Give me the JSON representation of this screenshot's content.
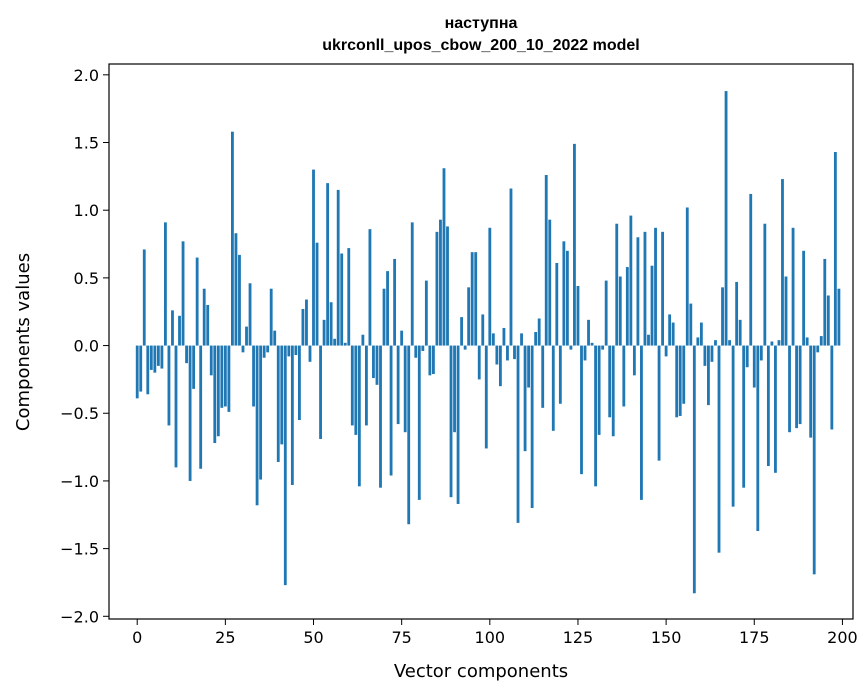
{
  "chart_data": {
    "type": "bar",
    "title_line1": "наступна",
    "title_line2": "ukrconll_upos_cbow_200_10_2022 model",
    "xlabel": "Vector components",
    "ylabel": "Components values",
    "xlim": [
      -8,
      203
    ],
    "ylim": [
      -2.02,
      2.08
    ],
    "xticks": [
      0,
      25,
      50,
      75,
      100,
      125,
      150,
      175,
      200
    ],
    "xtick_labels": [
      "0",
      "25",
      "50",
      "75",
      "100",
      "125",
      "150",
      "175",
      "200"
    ],
    "yticks": [
      2.0,
      1.5,
      1.0,
      0.5,
      0.0,
      -0.5,
      -1.0,
      -1.5,
      -2.0
    ],
    "ytick_labels": [
      "2.0",
      "1.5",
      "1.0",
      "0.5",
      "0.0",
      "−0.5",
      "−1.0",
      "−1.5",
      "−2.0"
    ],
    "bar_color": "#1f77b4",
    "grid": false,
    "values": [
      -0.39,
      -0.34,
      0.71,
      -0.36,
      -0.18,
      -0.2,
      -0.15,
      -0.17,
      0.91,
      -0.59,
      0.26,
      -0.9,
      0.22,
      0.77,
      -0.13,
      -1.0,
      -0.32,
      0.65,
      -0.91,
      0.42,
      0.3,
      -0.22,
      -0.72,
      -0.67,
      -0.46,
      -0.45,
      -0.49,
      1.58,
      0.83,
      0.67,
      -0.05,
      0.14,
      0.46,
      -0.45,
      -1.18,
      -0.99,
      -0.09,
      -0.05,
      0.42,
      0.11,
      -0.86,
      -0.73,
      -1.77,
      -0.08,
      -1.03,
      -0.07,
      -0.55,
      0.27,
      0.34,
      -0.12,
      1.3,
      0.76,
      -0.69,
      0.19,
      1.2,
      0.32,
      0.05,
      1.15,
      0.68,
      0.02,
      0.72,
      -0.59,
      -0.66,
      -1.04,
      0.08,
      -0.59,
      0.86,
      -0.24,
      -0.29,
      -1.05,
      0.42,
      0.55,
      -0.96,
      0.64,
      -0.58,
      0.11,
      -0.64,
      -1.32,
      0.91,
      -0.09,
      -1.14,
      -0.04,
      0.48,
      -0.22,
      -0.21,
      0.84,
      0.93,
      1.31,
      0.88,
      -1.12,
      -0.64,
      -1.17,
      0.21,
      -0.03,
      0.43,
      0.69,
      0.69,
      -0.25,
      0.23,
      -0.76,
      0.87,
      0.09,
      -0.14,
      -0.3,
      0.13,
      -0.11,
      1.16,
      -0.1,
      -1.31,
      0.09,
      -0.78,
      -0.31,
      -1.2,
      0.1,
      0.2,
      -0.46,
      1.26,
      0.93,
      -0.63,
      0.61,
      -0.43,
      0.77,
      0.7,
      -0.03,
      1.49,
      0.44,
      -0.95,
      -0.11,
      0.19,
      0.02,
      -1.04,
      -0.66,
      -0.03,
      0.48,
      -0.53,
      -0.67,
      0.9,
      0.51,
      -0.45,
      0.58,
      0.96,
      -0.22,
      0.8,
      -1.14,
      0.84,
      0.08,
      0.59,
      0.87,
      -0.85,
      0.84,
      -0.08,
      0.23,
      0.17,
      -0.53,
      -0.52,
      -0.43,
      1.02,
      0.31,
      -1.83,
      0.06,
      0.17,
      -0.15,
      -0.44,
      -0.12,
      0.04,
      -1.53,
      0.43,
      1.88,
      0.04,
      -1.19,
      0.47,
      0.19,
      -1.05,
      -0.16,
      1.12,
      -0.31,
      -1.37,
      -0.11,
      0.9,
      -0.89,
      0.03,
      -0.94,
      0.04,
      1.23,
      0.51,
      -0.64,
      0.87,
      -0.61,
      -0.58,
      0.7,
      0.06,
      -0.68,
      -1.69,
      -0.05,
      0.07,
      0.64,
      0.37,
      -0.62,
      1.43,
      0.42
    ]
  }
}
